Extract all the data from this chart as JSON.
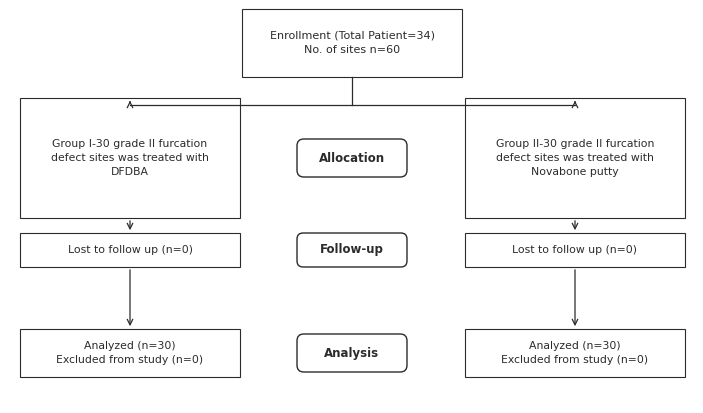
{
  "bg_color": "#ffffff",
  "box_color": "#ffffff",
  "box_edge_color": "#2b2b2b",
  "text_color": "#2b2b2b",
  "arrow_color": "#2b2b2b",
  "enrollment_text": "Enrollment (Total Patient=34)\nNo. of sites n=60",
  "group1_text": "Group I-30 grade II furcation\ndefect sites was treated with\nDFDBA",
  "group2_text": "Group II-30 grade II furcation\ndefect sites was treated with\nNovabone putty",
  "allocation_text": "Allocation",
  "followup_text": "Follow-up",
  "analysis_text": "Analysis",
  "lost1_text": "Lost to follow up (n=0)",
  "lost2_text": "Lost to follow up (n=0)",
  "analyzed1_text": "Analyzed (n=30)\nExcluded from study (n=0)",
  "analyzed2_text": "Analyzed (n=30)\nExcluded from study (n=0)",
  "figsize": [
    7.03,
    4.13
  ],
  "dpi": 100
}
